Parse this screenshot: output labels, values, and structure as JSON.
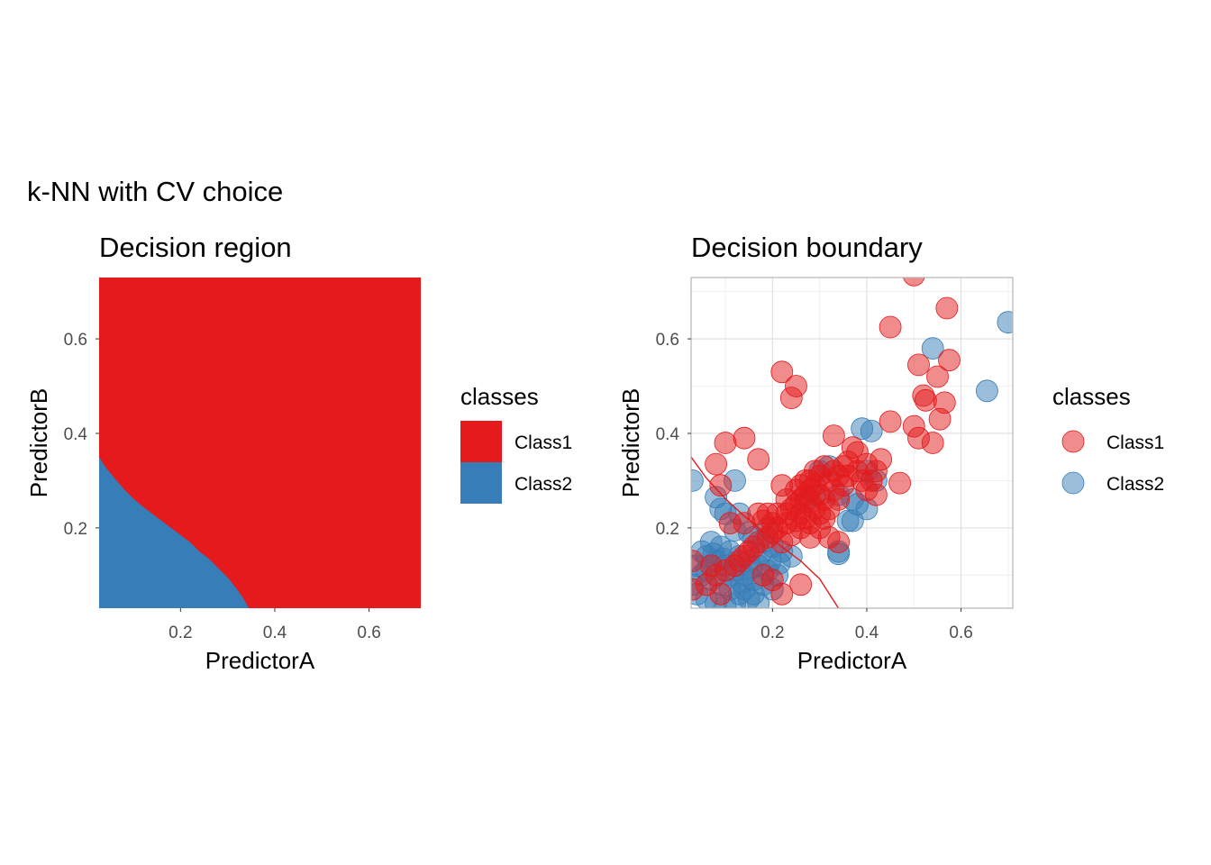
{
  "title": "k-NN with CV choice",
  "colors": {
    "class1": "#E41A1C",
    "class2": "#377EB8",
    "boundary": "#E41A1C",
    "grid": "#dedede",
    "panel_border": "#b3b3b3"
  },
  "chart_data": [
    {
      "type": "heatmap",
      "title": "Decision region",
      "xlabel": "PredictorA",
      "ylabel": "PredictorB",
      "xlim": [
        0.0273,
        0.7097
      ],
      "ylim": [
        0.0301,
        0.7298
      ],
      "x_ticks": [
        0.2,
        0.4,
        0.6
      ],
      "y_ticks": [
        0.2,
        0.4,
        0.6
      ],
      "x_tick_labels": [
        "0.2",
        "0.4",
        "0.6"
      ],
      "y_tick_labels": [
        "0.2",
        "0.4",
        "0.6"
      ],
      "grid": false,
      "legend": {
        "title": "classes",
        "position": "right",
        "entries": [
          "Class1",
          "Class2"
        ]
      },
      "class2_region_boundary": [
        [
          0.0273,
          0.35
        ],
        [
          0.04,
          0.33
        ],
        [
          0.06,
          0.305
        ],
        [
          0.08,
          0.282
        ],
        [
          0.1,
          0.262
        ],
        [
          0.12,
          0.245
        ],
        [
          0.14,
          0.23
        ],
        [
          0.16,
          0.215
        ],
        [
          0.18,
          0.2
        ],
        [
          0.2,
          0.185
        ],
        [
          0.22,
          0.17
        ],
        [
          0.24,
          0.15
        ],
        [
          0.26,
          0.135
        ],
        [
          0.28,
          0.115
        ],
        [
          0.3,
          0.095
        ],
        [
          0.32,
          0.07
        ],
        [
          0.335,
          0.048
        ],
        [
          0.345,
          0.0301
        ]
      ]
    },
    {
      "type": "scatter",
      "title": "Decision boundary",
      "xlabel": "PredictorA",
      "ylabel": "PredictorB",
      "xlim": [
        0.0273,
        0.7097
      ],
      "ylim": [
        0.0301,
        0.7298
      ],
      "x_ticks": [
        0.2,
        0.4,
        0.6
      ],
      "y_ticks": [
        0.2,
        0.4,
        0.6
      ],
      "x_tick_labels": [
        "0.2",
        "0.4",
        "0.6"
      ],
      "y_tick_labels": [
        "0.2",
        "0.4",
        "0.6"
      ],
      "grid": true,
      "legend": {
        "title": "classes",
        "position": "right",
        "entries": [
          "Class1",
          "Class2"
        ]
      },
      "boundary_line": [
        [
          0.0273,
          0.35
        ],
        [
          0.06,
          0.305
        ],
        [
          0.1,
          0.262
        ],
        [
          0.14,
          0.225
        ],
        [
          0.18,
          0.192
        ],
        [
          0.22,
          0.16
        ],
        [
          0.26,
          0.13
        ],
        [
          0.3,
          0.092
        ],
        [
          0.34,
          0.03
        ]
      ],
      "series": [
        {
          "name": "Class1",
          "points": [
            [
              0.5,
              0.735
            ],
            [
              0.45,
              0.625
            ],
            [
              0.57,
              0.665
            ],
            [
              0.22,
              0.53
            ],
            [
              0.25,
              0.5
            ],
            [
              0.24,
              0.475
            ],
            [
              0.51,
              0.545
            ],
            [
              0.55,
              0.52
            ],
            [
              0.52,
              0.48
            ],
            [
              0.525,
              0.47
            ],
            [
              0.575,
              0.555
            ],
            [
              0.565,
              0.465
            ],
            [
              0.5,
              0.415
            ],
            [
              0.51,
              0.39
            ],
            [
              0.54,
              0.38
            ],
            [
              0.555,
              0.43
            ],
            [
              0.45,
              0.425
            ],
            [
              0.33,
              0.395
            ],
            [
              0.37,
              0.37
            ],
            [
              0.38,
              0.36
            ],
            [
              0.4,
              0.335
            ],
            [
              0.42,
              0.32
            ],
            [
              0.43,
              0.345
            ],
            [
              0.47,
              0.295
            ],
            [
              0.36,
              0.34
            ],
            [
              0.35,
              0.33
            ],
            [
              0.34,
              0.31
            ],
            [
              0.32,
              0.3
            ],
            [
              0.3,
              0.31
            ],
            [
              0.29,
              0.29
            ],
            [
              0.28,
              0.28
            ],
            [
              0.27,
              0.27
            ],
            [
              0.26,
              0.26
            ],
            [
              0.25,
              0.25
            ],
            [
              0.24,
              0.24
            ],
            [
              0.23,
              0.23
            ],
            [
              0.22,
              0.29
            ],
            [
              0.23,
              0.21
            ],
            [
              0.21,
              0.2
            ],
            [
              0.2,
              0.19
            ],
            [
              0.19,
              0.18
            ],
            [
              0.17,
              0.23
            ],
            [
              0.17,
              0.17
            ],
            [
              0.16,
              0.16
            ],
            [
              0.15,
              0.15
            ],
            [
              0.14,
              0.14
            ],
            [
              0.13,
              0.13
            ],
            [
              0.12,
              0.12
            ],
            [
              0.1,
              0.38
            ],
            [
              0.14,
              0.39
            ],
            [
              0.17,
              0.345
            ],
            [
              0.08,
              0.335
            ],
            [
              0.09,
              0.29
            ],
            [
              0.14,
              0.21
            ],
            [
              0.11,
              0.21
            ],
            [
              0.1,
              0.11
            ],
            [
              0.08,
              0.1
            ],
            [
              0.07,
              0.12
            ],
            [
              0.06,
              0.08
            ],
            [
              0.09,
              0.06
            ],
            [
              0.03,
              0.13
            ],
            [
              0.03,
              0.07
            ],
            [
              0.18,
              0.1
            ],
            [
              0.2,
              0.09
            ],
            [
              0.26,
              0.08
            ],
            [
              0.22,
              0.06
            ],
            [
              0.3,
              0.2
            ],
            [
              0.31,
              0.22
            ],
            [
              0.32,
              0.18
            ],
            [
              0.34,
              0.17
            ],
            [
              0.28,
              0.18
            ],
            [
              0.26,
              0.2
            ],
            [
              0.27,
              0.22
            ],
            [
              0.29,
              0.24
            ],
            [
              0.31,
              0.26
            ],
            [
              0.33,
              0.28
            ],
            [
              0.3,
              0.27
            ],
            [
              0.28,
              0.255
            ],
            [
              0.26,
              0.23
            ],
            [
              0.25,
              0.215
            ],
            [
              0.32,
              0.24
            ],
            [
              0.3,
              0.23
            ],
            [
              0.28,
              0.21
            ],
            [
              0.24,
              0.185
            ],
            [
              0.22,
              0.17
            ],
            [
              0.21,
              0.23
            ],
            [
              0.19,
              0.23
            ],
            [
              0.18,
              0.215
            ],
            [
              0.2,
              0.21
            ],
            [
              0.35,
              0.29
            ],
            [
              0.34,
              0.26
            ],
            [
              0.36,
              0.31
            ],
            [
              0.38,
              0.32
            ],
            [
              0.39,
              0.3
            ],
            [
              0.4,
              0.28
            ],
            [
              0.41,
              0.3
            ],
            [
              0.42,
              0.27
            ],
            [
              0.27,
              0.3
            ],
            [
              0.25,
              0.28
            ],
            [
              0.23,
              0.26
            ],
            [
              0.28,
              0.3
            ],
            [
              0.31,
              0.33
            ],
            [
              0.29,
              0.32
            ],
            [
              0.33,
              0.32
            ],
            [
              0.26,
              0.29
            ]
          ]
        },
        {
          "name": "Class2",
          "points": [
            [
              0.7,
              0.635
            ],
            [
              0.54,
              0.58
            ],
            [
              0.655,
              0.49
            ],
            [
              0.39,
              0.41
            ],
            [
              0.41,
              0.405
            ],
            [
              0.3,
              0.32
            ],
            [
              0.32,
              0.33
            ],
            [
              0.34,
              0.27
            ],
            [
              0.37,
              0.26
            ],
            [
              0.38,
              0.25
            ],
            [
              0.4,
              0.24
            ],
            [
              0.42,
              0.3
            ],
            [
              0.4,
              0.32
            ],
            [
              0.36,
              0.215
            ],
            [
              0.37,
              0.215
            ],
            [
              0.34,
              0.145
            ],
            [
              0.34,
              0.15
            ],
            [
              0.27,
              0.255
            ],
            [
              0.29,
              0.27
            ],
            [
              0.03,
              0.3
            ],
            [
              0.12,
              0.3
            ],
            [
              0.08,
              0.265
            ],
            [
              0.09,
              0.24
            ],
            [
              0.1,
              0.23
            ],
            [
              0.13,
              0.23
            ],
            [
              0.12,
              0.195
            ],
            [
              0.15,
              0.19
            ],
            [
              0.16,
              0.18
            ],
            [
              0.18,
              0.17
            ],
            [
              0.2,
              0.16
            ],
            [
              0.22,
              0.15
            ],
            [
              0.24,
              0.14
            ],
            [
              0.19,
              0.2
            ],
            [
              0.07,
              0.17
            ],
            [
              0.09,
              0.16
            ],
            [
              0.11,
              0.15
            ],
            [
              0.13,
              0.14
            ],
            [
              0.15,
              0.13
            ],
            [
              0.17,
              0.12
            ],
            [
              0.19,
              0.11
            ],
            [
              0.21,
              0.1
            ],
            [
              0.05,
              0.15
            ],
            [
              0.06,
              0.14
            ],
            [
              0.08,
              0.13
            ],
            [
              0.1,
              0.12
            ],
            [
              0.12,
              0.11
            ],
            [
              0.14,
              0.1
            ],
            [
              0.16,
              0.09
            ],
            [
              0.18,
              0.08
            ],
            [
              0.2,
              0.07
            ],
            [
              0.04,
              0.12
            ],
            [
              0.05,
              0.1
            ],
            [
              0.07,
              0.09
            ],
            [
              0.09,
              0.08
            ],
            [
              0.11,
              0.07
            ],
            [
              0.13,
              0.06
            ],
            [
              0.15,
              0.05
            ],
            [
              0.17,
              0.04
            ],
            [
              0.03,
              0.08
            ],
            [
              0.04,
              0.06
            ],
            [
              0.06,
              0.05
            ],
            [
              0.08,
              0.04
            ],
            [
              0.1,
              0.035
            ],
            [
              0.12,
              0.04
            ],
            [
              0.14,
              0.07
            ],
            [
              0.16,
              0.06
            ],
            [
              0.06,
              0.11
            ],
            [
              0.075,
              0.145
            ],
            [
              0.095,
              0.135
            ],
            [
              0.115,
              0.1
            ],
            [
              0.135,
              0.085
            ],
            [
              0.155,
              0.115
            ],
            [
              0.175,
              0.145
            ],
            [
              0.195,
              0.13
            ],
            [
              0.215,
              0.125
            ]
          ]
        }
      ]
    }
  ]
}
